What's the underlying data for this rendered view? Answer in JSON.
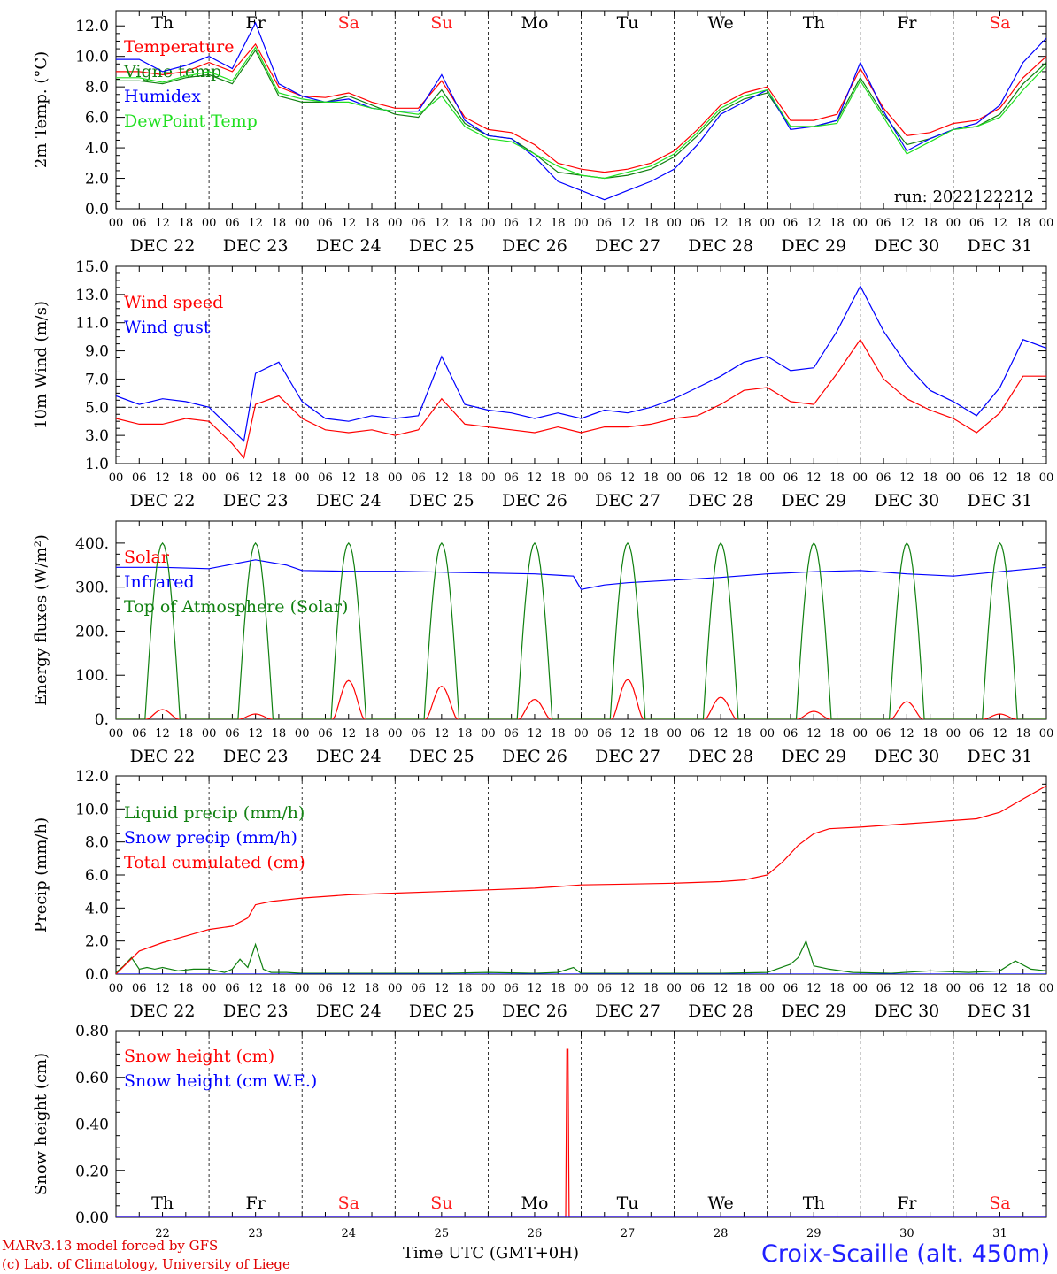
{
  "meta": {
    "footer_model": "MARv3.13 model forced by GFS",
    "footer_credit": "(c) Lab. of Climatology, University of Liege",
    "footer_station": "Croix-Scaille (alt. 450m)",
    "footer_xlabel": "Time UTC (GMT+0H)",
    "colors": {
      "red": "#ff0000",
      "green": "#108010",
      "blue": "#0000ff",
      "lightgreen": "#20e020",
      "weekend": "#ff2020",
      "day": "#000000"
    }
  },
  "x_axis": {
    "hour_ticks": [
      "00",
      "06",
      "12",
      "18"
    ],
    "dates": [
      "DEC 22",
      "DEC 23",
      "DEC 24",
      "DEC 25",
      "DEC 26",
      "DEC 27",
      "DEC 28",
      "DEC 29",
      "DEC 30",
      "DEC 31"
    ],
    "weekdays": [
      "Th",
      "Fr",
      "Sa",
      "Su",
      "Mo",
      "Tu",
      "We",
      "Th",
      "Fr",
      "Sa"
    ],
    "weekend": [
      false,
      false,
      true,
      true,
      false,
      false,
      false,
      false,
      false,
      true
    ],
    "day_numbers": [
      "22",
      "23",
      "24",
      "25",
      "26",
      "27",
      "28",
      "29",
      "30",
      "31"
    ]
  },
  "chart_data": [
    {
      "type": "line",
      "ylabel": "2m Temp. (°C)",
      "ylim": [
        0,
        13
      ],
      "yticks": [
        "0.0",
        "2.0",
        "4.0",
        "6.0",
        "8.0",
        "10.0",
        "12.0"
      ],
      "annotation": "run: 2022122212",
      "show_weekdays_top": true,
      "x_unit": "hours since DEC 22 00UTC",
      "series": [
        {
          "name": "Temperature",
          "color": "#ff0000",
          "x": [
            0,
            6,
            12,
            18,
            24,
            30,
            36,
            42,
            48,
            54,
            60,
            66,
            72,
            78,
            84,
            90,
            96,
            102,
            108,
            114,
            120,
            126,
            132,
            138,
            144,
            150,
            156,
            162,
            168,
            174,
            180,
            186,
            192,
            198,
            204,
            210,
            216,
            222,
            228,
            234,
            240
          ],
          "y": [
            9.0,
            9.0,
            8.8,
            9.0,
            9.6,
            9.0,
            10.8,
            8.0,
            7.4,
            7.3,
            7.6,
            7.0,
            6.6,
            6.6,
            8.4,
            6.0,
            5.2,
            5.0,
            4.2,
            3.0,
            2.6,
            2.4,
            2.6,
            3.0,
            3.8,
            5.2,
            6.8,
            7.6,
            8.0,
            5.8,
            5.8,
            6.2,
            9.2,
            6.6,
            4.8,
            5.0,
            5.6,
            5.8,
            6.6,
            8.6,
            10.0
          ]
        },
        {
          "name": "Vigne temp",
          "color": "#108010",
          "x": [
            0,
            6,
            12,
            18,
            24,
            30,
            36,
            42,
            48,
            54,
            60,
            66,
            72,
            78,
            84,
            90,
            96,
            102,
            108,
            114,
            120,
            126,
            132,
            138,
            144,
            150,
            156,
            162,
            168,
            174,
            180,
            186,
            192,
            198,
            204,
            210,
            216,
            222,
            228,
            234,
            240
          ],
          "y": [
            8.4,
            8.4,
            8.2,
            8.6,
            8.8,
            8.2,
            10.4,
            7.4,
            7.0,
            7.0,
            7.4,
            6.8,
            6.2,
            6.0,
            7.8,
            5.6,
            4.8,
            4.6,
            3.6,
            2.4,
            2.2,
            2.0,
            2.2,
            2.6,
            3.4,
            4.8,
            6.4,
            7.2,
            7.6,
            5.4,
            5.4,
            5.8,
            8.6,
            6.2,
            4.2,
            4.6,
            5.2,
            5.4,
            6.2,
            8.2,
            9.6
          ]
        },
        {
          "name": "Humidex",
          "color": "#0000ff",
          "x": [
            0,
            6,
            12,
            18,
            24,
            30,
            36,
            42,
            48,
            54,
            60,
            66,
            72,
            78,
            84,
            90,
            96,
            102,
            108,
            114,
            120,
            126,
            132,
            138,
            144,
            150,
            156,
            162,
            168,
            174,
            180,
            186,
            192,
            198,
            204,
            210,
            216,
            222,
            228,
            234,
            240
          ],
          "y": [
            9.8,
            9.8,
            9.0,
            9.4,
            10.0,
            9.2,
            12.2,
            8.2,
            7.4,
            7.0,
            7.2,
            6.6,
            6.4,
            6.4,
            8.8,
            5.8,
            4.8,
            4.6,
            3.4,
            1.8,
            1.2,
            0.6,
            1.2,
            1.8,
            2.6,
            4.2,
            6.2,
            7.0,
            7.8,
            5.2,
            5.4,
            5.8,
            9.6,
            6.4,
            3.8,
            4.6,
            5.2,
            5.6,
            6.8,
            9.6,
            11.2
          ]
        },
        {
          "name": "DewPoint Temp",
          "color": "#20e020",
          "x": [
            0,
            6,
            12,
            18,
            24,
            30,
            36,
            42,
            48,
            54,
            60,
            66,
            72,
            78,
            84,
            90,
            96,
            102,
            108,
            114,
            120,
            126,
            132,
            138,
            144,
            150,
            156,
            162,
            168,
            174,
            180,
            186,
            192,
            198,
            204,
            210,
            216,
            222,
            228,
            234,
            240
          ],
          "y": [
            8.6,
            8.6,
            8.3,
            8.7,
            9.0,
            8.4,
            10.6,
            7.6,
            7.2,
            7.0,
            7.0,
            6.6,
            6.4,
            6.2,
            7.4,
            5.4,
            4.6,
            4.4,
            3.6,
            2.8,
            2.2,
            2.0,
            2.4,
            2.8,
            3.6,
            5.0,
            6.6,
            7.4,
            7.8,
            5.4,
            5.4,
            5.6,
            8.4,
            6.0,
            3.6,
            4.4,
            5.2,
            5.4,
            6.0,
            7.8,
            9.4
          ]
        }
      ]
    },
    {
      "type": "line",
      "ylabel": "10m Wind (m/s)",
      "ylim": [
        1,
        15
      ],
      "yticks": [
        "1.0",
        "3.0",
        "5.0",
        "7.0",
        "9.0",
        "11.0",
        "13.0",
        "15.0"
      ],
      "reference_line": 5,
      "x_unit": "hours since DEC 22 00UTC",
      "series": [
        {
          "name": "Wind speed",
          "color": "#ff0000",
          "x": [
            0,
            6,
            12,
            18,
            24,
            30,
            33,
            36,
            42,
            48,
            54,
            60,
            66,
            72,
            78,
            84,
            90,
            96,
            102,
            108,
            114,
            120,
            126,
            132,
            138,
            144,
            150,
            156,
            162,
            168,
            174,
            180,
            186,
            192,
            198,
            204,
            210,
            216,
            222,
            228,
            234,
            240
          ],
          "y": [
            4.2,
            3.8,
            3.8,
            4.2,
            4.0,
            2.4,
            1.4,
            5.2,
            5.8,
            4.2,
            3.4,
            3.2,
            3.4,
            3.0,
            3.4,
            5.6,
            3.8,
            3.6,
            3.4,
            3.2,
            3.6,
            3.2,
            3.6,
            3.6,
            3.8,
            4.2,
            4.4,
            5.2,
            6.2,
            6.4,
            5.4,
            5.2,
            7.4,
            9.8,
            7.0,
            5.6,
            4.8,
            4.2,
            3.2,
            4.6,
            7.2,
            7.2
          ]
        },
        {
          "name": "Wind gust",
          "color": "#0000ff",
          "x": [
            0,
            6,
            12,
            18,
            24,
            30,
            33,
            36,
            42,
            48,
            54,
            60,
            66,
            72,
            78,
            84,
            90,
            96,
            102,
            108,
            114,
            120,
            126,
            132,
            138,
            144,
            150,
            156,
            162,
            168,
            174,
            180,
            186,
            192,
            198,
            204,
            210,
            216,
            222,
            228,
            234,
            240
          ],
          "y": [
            5.8,
            5.2,
            5.6,
            5.4,
            5.0,
            3.4,
            2.6,
            7.4,
            8.2,
            5.4,
            4.2,
            4.0,
            4.4,
            4.2,
            4.4,
            8.6,
            5.2,
            4.8,
            4.6,
            4.2,
            4.6,
            4.2,
            4.8,
            4.6,
            5.0,
            5.6,
            6.4,
            7.2,
            8.2,
            8.6,
            7.6,
            7.8,
            10.4,
            13.6,
            10.4,
            8.0,
            6.2,
            5.4,
            4.4,
            6.4,
            9.8,
            9.2
          ]
        }
      ]
    },
    {
      "type": "line",
      "ylabel": "Energy fluxes (W/m²)",
      "ylim": [
        0,
        450
      ],
      "yticks": [
        "0.",
        "100.",
        "200.",
        "300.",
        "400."
      ],
      "x_unit": "hours since DEC 22 00UTC",
      "solar_peaks": [
        22,
        12,
        88,
        75,
        45,
        90,
        50,
        18,
        40,
        12
      ],
      "toa_peak": 400,
      "series": [
        {
          "name": "Solar",
          "color": "#ff0000"
        },
        {
          "name": "Infrared",
          "color": "#0000ff",
          "x": [
            0,
            12,
            24,
            36,
            44,
            48,
            60,
            72,
            84,
            96,
            108,
            118,
            120,
            126,
            132,
            144,
            156,
            168,
            180,
            192,
            204,
            216,
            228,
            240
          ],
          "y": [
            345,
            345,
            342,
            362,
            350,
            338,
            336,
            336,
            334,
            332,
            330,
            325,
            295,
            305,
            310,
            316,
            322,
            330,
            335,
            338,
            330,
            325,
            335,
            345
          ]
        },
        {
          "name": "Top of Atmosphere (Solar)",
          "color": "#108010"
        }
      ]
    },
    {
      "type": "line",
      "ylabel": "Precip (mm/h)",
      "ylim": [
        0,
        12
      ],
      "yticks": [
        "0.0",
        "2.0",
        "4.0",
        "6.0",
        "8.0",
        "10.0",
        "12.0"
      ],
      "x_unit": "hours since DEC 22 00UTC",
      "series": [
        {
          "name": "Liquid precip (mm/h)",
          "color": "#108010",
          "x": [
            0,
            2,
            4,
            6,
            8,
            10,
            12,
            16,
            20,
            24,
            28,
            30,
            32,
            34,
            36,
            38,
            40,
            44,
            48,
            60,
            72,
            84,
            96,
            108,
            114,
            118,
            120,
            132,
            156,
            168,
            174,
            176,
            178,
            180,
            184,
            190,
            200,
            210,
            220,
            228,
            232,
            236,
            240
          ],
          "y": [
            0.1,
            0.5,
            1.0,
            0.3,
            0.4,
            0.3,
            0.4,
            0.2,
            0.3,
            0.3,
            0.1,
            0.3,
            0.9,
            0.4,
            1.8,
            0.3,
            0.1,
            0.1,
            0.05,
            0.05,
            0.05,
            0.05,
            0.1,
            0.05,
            0.1,
            0.4,
            0.05,
            0.05,
            0.05,
            0.1,
            0.6,
            1.0,
            2.0,
            0.5,
            0.3,
            0.1,
            0.05,
            0.2,
            0.1,
            0.2,
            0.8,
            0.3,
            0.2
          ]
        },
        {
          "name": "Snow precip (mm/h)",
          "color": "#0000ff",
          "x": [
            0,
            240
          ],
          "y": [
            0,
            0
          ]
        },
        {
          "name": "Total cumulated (cm)",
          "color": "#ff0000",
          "x": [
            0,
            6,
            12,
            18,
            24,
            30,
            34,
            36,
            40,
            48,
            60,
            72,
            84,
            96,
            108,
            114,
            120,
            132,
            144,
            156,
            162,
            168,
            172,
            176,
            180,
            184,
            192,
            198,
            204,
            210,
            216,
            222,
            228,
            234,
            240
          ],
          "y": [
            0.0,
            1.4,
            1.9,
            2.3,
            2.7,
            2.9,
            3.4,
            4.2,
            4.4,
            4.6,
            4.8,
            4.9,
            5.0,
            5.1,
            5.2,
            5.3,
            5.4,
            5.45,
            5.5,
            5.6,
            5.7,
            6.0,
            6.8,
            7.8,
            8.5,
            8.8,
            8.9,
            9.0,
            9.1,
            9.2,
            9.3,
            9.4,
            9.8,
            10.6,
            11.4
          ]
        }
      ]
    },
    {
      "type": "line",
      "ylabel": "Snow height (cm)",
      "ylim": [
        0,
        0.8
      ],
      "yticks": [
        "0.00",
        "0.20",
        "0.40",
        "0.60",
        "0.80"
      ],
      "show_weekdays_bottom": true,
      "x_unit": "hours since DEC 22 00UTC",
      "series": [
        {
          "name": "Snow height (cm)",
          "color": "#ff0000",
          "x": [
            0,
            116.0,
            116.3,
            116.6,
            116.9,
            240
          ],
          "y": [
            0,
            0,
            0.72,
            0.72,
            0,
            0
          ]
        },
        {
          "name": "Snow height (cm W.E.)",
          "color": "#0000ff",
          "x": [
            0,
            240
          ],
          "y": [
            0,
            0
          ]
        }
      ]
    }
  ]
}
